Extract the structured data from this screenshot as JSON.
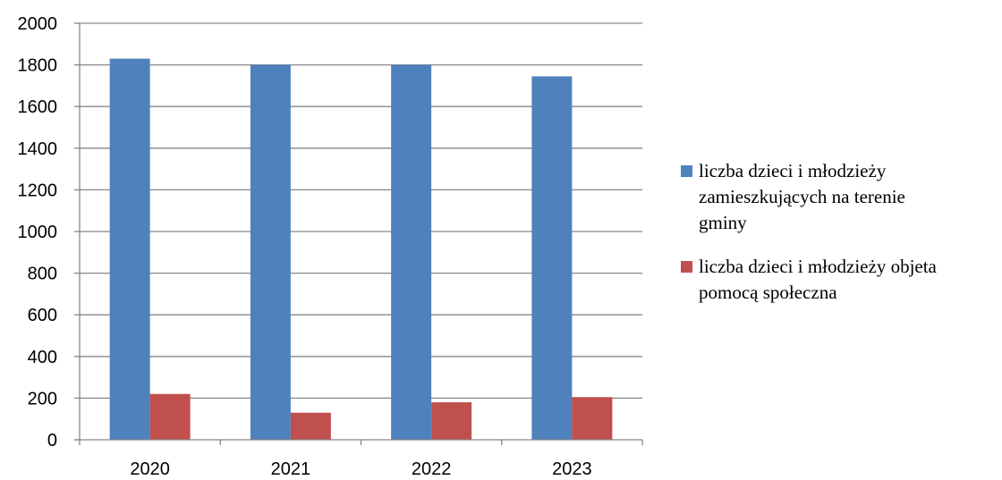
{
  "chart_data": {
    "type": "bar",
    "categories": [
      "2020",
      "2021",
      "2022",
      "2023"
    ],
    "series": [
      {
        "name": "liczba dzieci i młodzieży zamieszkujących na terenie gminy",
        "legend_lines": [
          "liczba dzieci i młodzieży",
          "zamieszkujących na terenie",
          "gminy"
        ],
        "color": "#4F81BD",
        "values": [
          1830,
          1800,
          1800,
          1745
        ]
      },
      {
        "name": "liczba dzieci i młodzieży objeta pomocą społeczna",
        "legend_lines": [
          "liczba dzieci i młodzieży objeta",
          "pomocą społeczna"
        ],
        "color": "#C0504D",
        "values": [
          220,
          130,
          180,
          205
        ]
      }
    ],
    "ylim": [
      0,
      2000
    ],
    "yticks": [
      0,
      200,
      400,
      600,
      800,
      1000,
      1200,
      1400,
      1600,
      1800,
      2000
    ],
    "grid": true,
    "legend_position": "right",
    "title": "",
    "xlabel": "",
    "ylabel": ""
  }
}
